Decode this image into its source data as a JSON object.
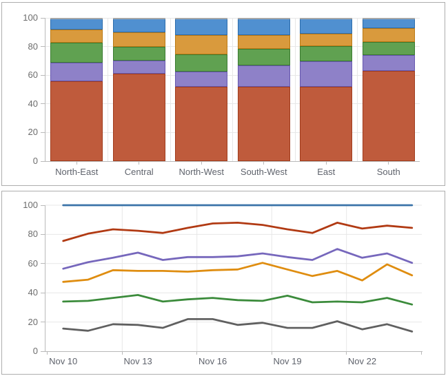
{
  "page": {
    "background": "#ffffff",
    "panel_border": "#adadad",
    "gridline_color": "#e7e7e7",
    "axis_color": "#b9b9b9",
    "tick_label_color": "#6c6c6c"
  },
  "chart_data": [
    {
      "type": "bar",
      "stacking": "percent",
      "title": "",
      "legend": "none",
      "grid": true,
      "ylim": [
        0,
        100
      ],
      "y_ticks": [
        0,
        20,
        40,
        60,
        80,
        100
      ],
      "categories": [
        "North-East",
        "Central",
        "North-West",
        "South-West",
        "East",
        "South"
      ],
      "bar_top_cap_color": "#a7a7a7",
      "series": [
        {
          "name": "rust",
          "color": "#bf5b3c",
          "border_color": "#a03c1d",
          "values": [
            56,
            61,
            52,
            52,
            52,
            63
          ]
        },
        {
          "name": "purple",
          "color": "#8e81c8",
          "border_color": "#6657ae",
          "values": [
            13,
            9,
            10.5,
            15,
            17.5,
            11
          ]
        },
        {
          "name": "green",
          "color": "#60a151",
          "border_color": "#3a7a30",
          "values": [
            13.5,
            10,
            12,
            11.5,
            11,
            9
          ]
        },
        {
          "name": "orange",
          "color": "#d99a3d",
          "border_color": "#ba7a15",
          "values": [
            9.5,
            10,
            13.5,
            9.5,
            8.5,
            10
          ]
        },
        {
          "name": "blue",
          "color": "#5090d0",
          "border_color": "#2c6cab",
          "values": [
            8,
            10,
            12,
            12,
            11,
            7
          ]
        }
      ]
    },
    {
      "type": "line",
      "title": "",
      "legend": "none",
      "grid": true,
      "ylim": [
        0,
        100
      ],
      "y_ticks": [
        0,
        20,
        40,
        60,
        80,
        100
      ],
      "x": [
        "Nov 10",
        "Nov 11",
        "Nov 12",
        "Nov 13",
        "Nov 14",
        "Nov 15",
        "Nov 16",
        "Nov 17",
        "Nov 18",
        "Nov 19",
        "Nov 20",
        "Nov 21",
        "Nov 22",
        "Nov 23",
        "Nov 24"
      ],
      "x_tick_labels": [
        "Nov 10",
        "Nov 13",
        "Nov 16",
        "Nov 19",
        "Nov 22"
      ],
      "series": [
        {
          "name": "blue",
          "color": "#3a73a8",
          "values": [
            100,
            100,
            100,
            100,
            100,
            100,
            100,
            100,
            100,
            100,
            100,
            100,
            100,
            100,
            100
          ]
        },
        {
          "name": "red",
          "color": "#b13a13",
          "values": [
            75.5,
            80.5,
            83.5,
            82.5,
            81,
            84.5,
            87.5,
            88,
            86.5,
            83.5,
            81,
            88,
            84,
            86,
            84.5
          ]
        },
        {
          "name": "purple",
          "color": "#7667bc",
          "values": [
            56.5,
            61,
            64,
            67.5,
            62.5,
            64.5,
            64.5,
            65,
            67,
            64.5,
            62.5,
            70,
            64,
            67,
            60.5
          ]
        },
        {
          "name": "orange",
          "color": "#df8d10",
          "values": [
            47.5,
            49,
            55.5,
            55,
            55,
            54.5,
            55.5,
            56,
            60.5,
            56,
            51.5,
            55,
            48.5,
            59.5,
            52
          ]
        },
        {
          "name": "green",
          "color": "#3b8b3b",
          "values": [
            34,
            34.5,
            36.5,
            38.5,
            34,
            35.5,
            36.5,
            35,
            34.5,
            38,
            33.5,
            34,
            33.5,
            36.5,
            32
          ]
        },
        {
          "name": "gray",
          "color": "#606060",
          "values": [
            15.5,
            14,
            18.5,
            18,
            16,
            22,
            22,
            18,
            19.5,
            16,
            16,
            20.5,
            15,
            18.5,
            13.5
          ]
        }
      ]
    }
  ]
}
